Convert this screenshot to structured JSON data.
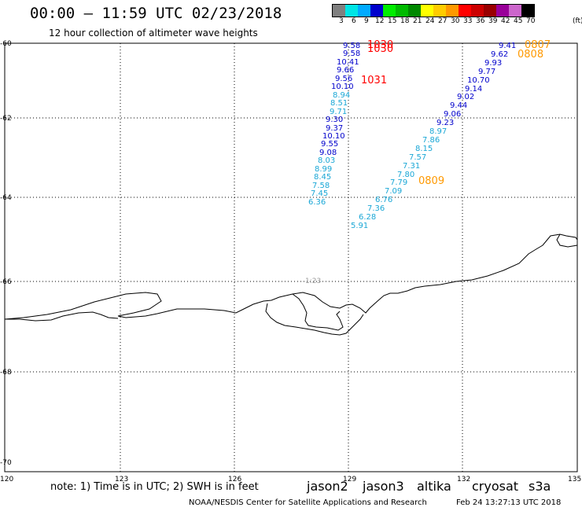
{
  "title": "00:00 – 11:59 UTC 02/23/2018",
  "subtitle": "12 hour collection of altimeter wave heights",
  "colorbar": {
    "unit": "(ft)",
    "labels": [
      "3",
      "6",
      "9",
      "12",
      "15",
      "18",
      "21",
      "24",
      "27",
      "30",
      "33",
      "36",
      "39",
      "42",
      "45",
      "70"
    ],
    "colors": [
      "#808080",
      "#00e5e5",
      "#00aaff",
      "#0000cc",
      "#00ee00",
      "#00bb00",
      "#008800",
      "#ffff00",
      "#ffcc00",
      "#ff9900",
      "#ff0000",
      "#cc0000",
      "#990000",
      "#990099",
      "#cc66cc",
      "#000000"
    ]
  },
  "axes": {
    "lat_labels": [
      "-60",
      "-62",
      "-64",
      "-66",
      "-68",
      "-70"
    ],
    "lon_labels": [
      "120",
      "123",
      "126",
      "129",
      "132",
      "135"
    ]
  },
  "marker_label": "1:23",
  "tracks": {
    "left": {
      "blue": [
        "9.58",
        "9.58",
        "10.41",
        "9.66",
        "9.56",
        "10.10"
      ],
      "cyan_top": [
        "8.94",
        "8.51",
        "9.71"
      ],
      "blue_mid": [
        "9.30",
        "9.37",
        "10.10",
        "9.55",
        "9.08"
      ],
      "cyan_bottom": [
        "8.03",
        "8.99",
        "8.45",
        "7.58",
        "7.45",
        "6.36"
      ]
    },
    "right": {
      "blue": [
        "9.41",
        "9.62",
        "9.93",
        "9.77",
        "10.70",
        "9.14",
        "9.02",
        "9.44",
        "9.06",
        "9.23"
      ],
      "cyan": [
        "8.97",
        "7.86",
        "8.15",
        "7.57",
        "7.31",
        "7.80",
        "7.79",
        "7.09",
        "6.76",
        "7.36",
        "6.28",
        "5.91"
      ]
    },
    "time_labels": {
      "red": [
        "1030",
        "1030",
        "1031"
      ],
      "orange": [
        "0807",
        "0808",
        "0809"
      ]
    }
  },
  "note": "note: 1) Time is in UTC; 2) SWH is in feet",
  "satellites": {
    "jason2": {
      "label": "jason2",
      "color": "#0000cc"
    },
    "jason3": {
      "label": "jason3",
      "color": "#008800"
    },
    "altika": {
      "label": "altika",
      "color": "#ff9900"
    },
    "cryosat": {
      "label": "cryosat",
      "color": "#ff0000"
    },
    "s3a": {
      "label": "s3a",
      "color": "#990000"
    }
  },
  "credit": "NOAA/NESDIS Center for Satellite Applications and Research",
  "timestamp": "Feb 24 13:27:13 UTC 2018"
}
